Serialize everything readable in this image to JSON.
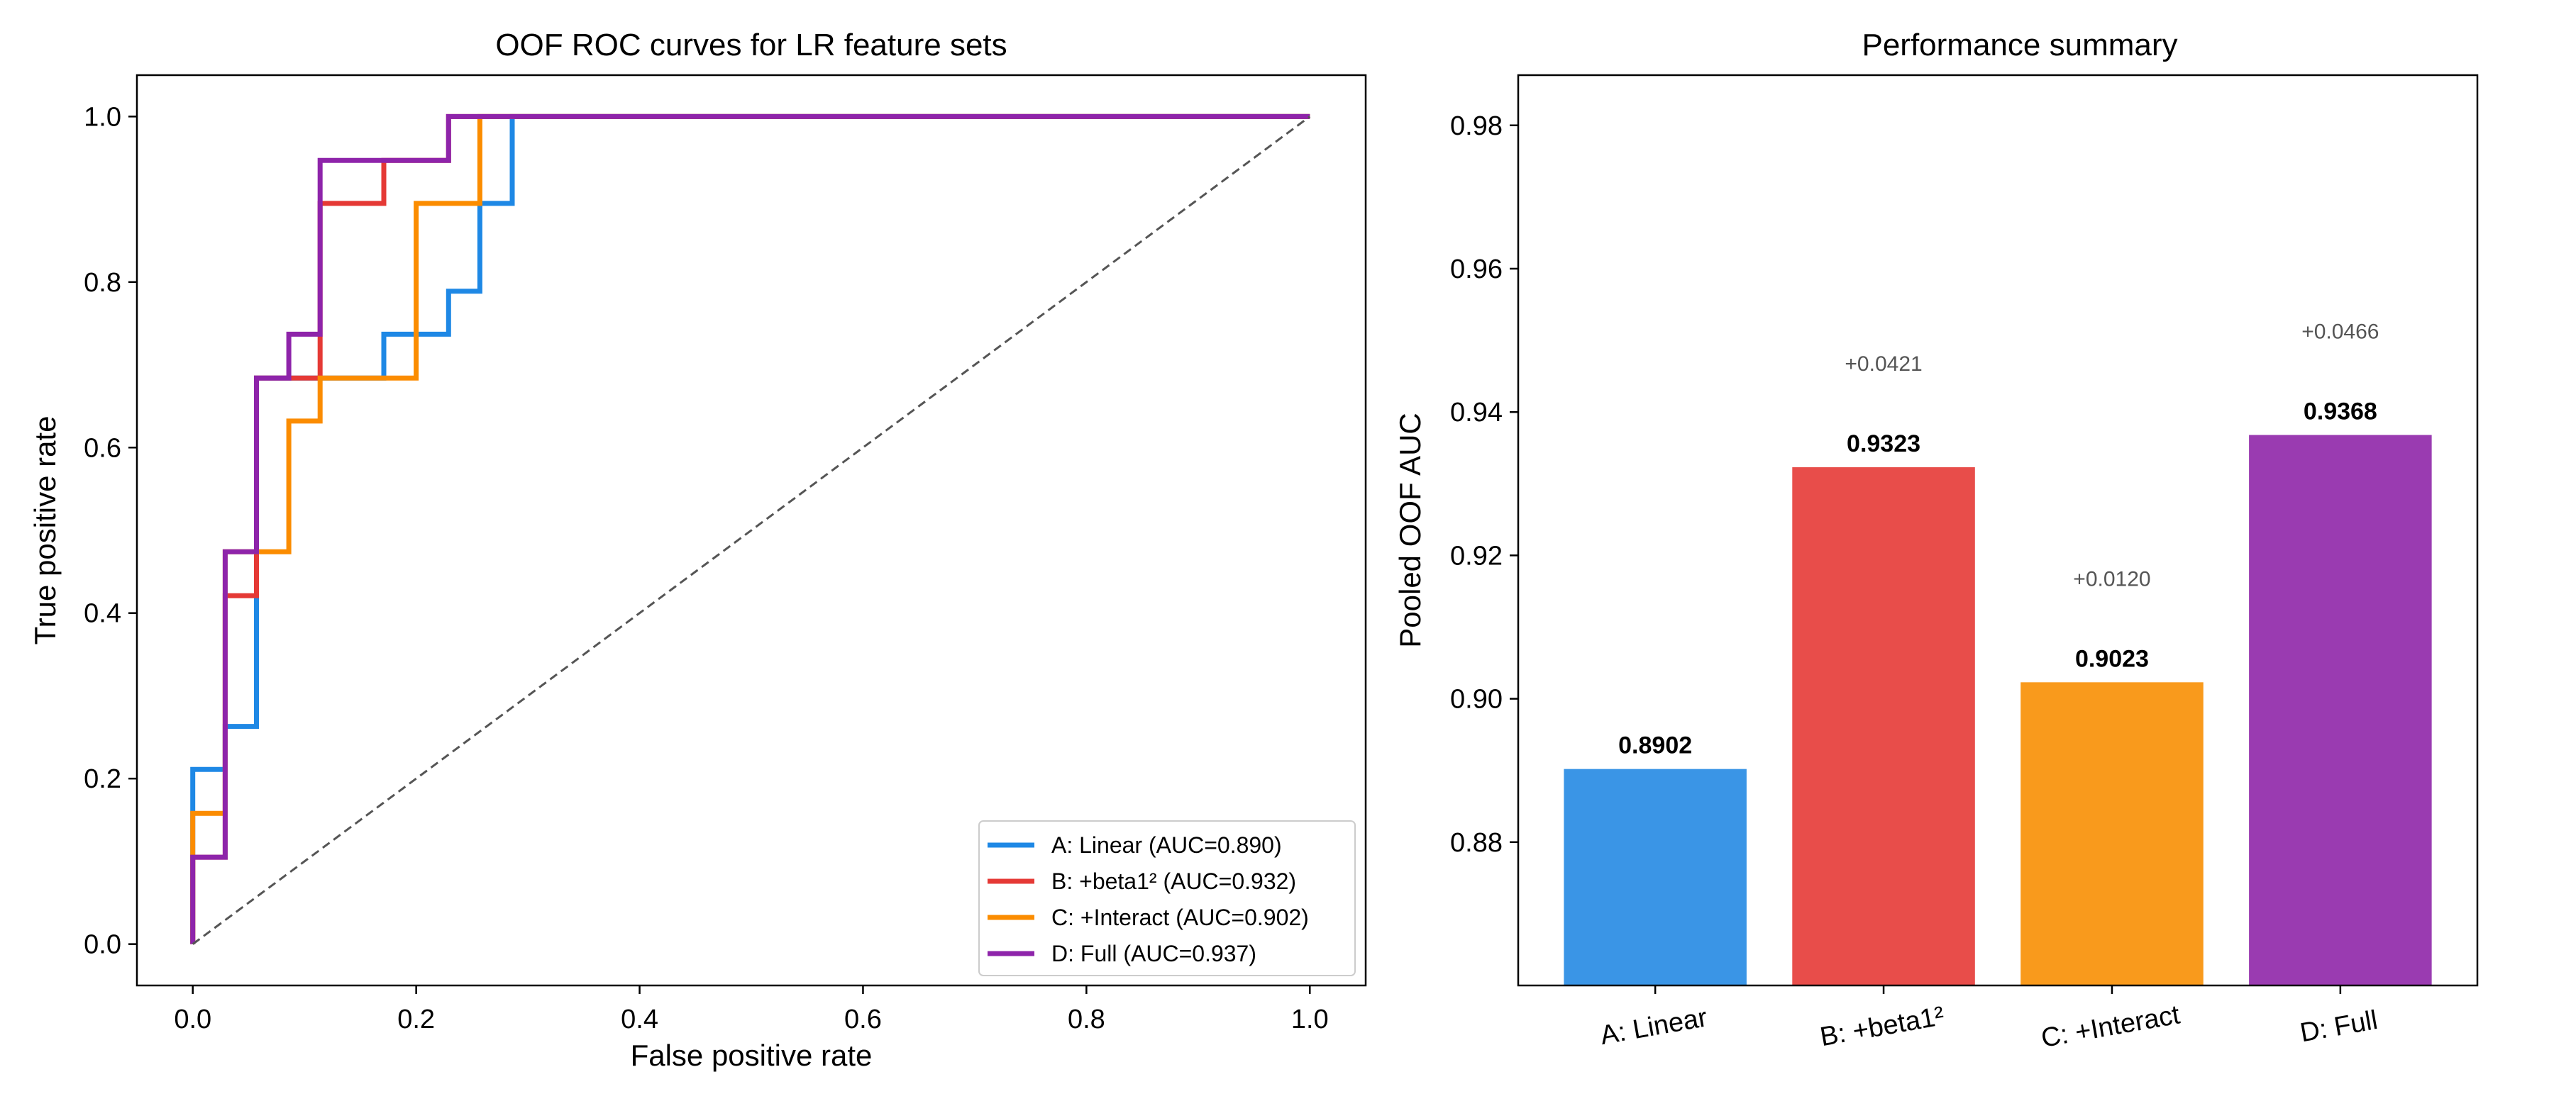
{
  "chart_data": [
    {
      "type": "line",
      "title": "OOF ROC curves for LR feature sets",
      "xlabel": "False positive rate",
      "ylabel": "True positive rate",
      "xlim": [
        -0.05,
        1.05
      ],
      "ylim": [
        -0.05,
        1.05
      ],
      "xticks": [
        0.0,
        0.2,
        0.4,
        0.6,
        0.8,
        1.0
      ],
      "xtick_labels": [
        "0.0",
        "0.2",
        "0.4",
        "0.6",
        "0.8",
        "1.0"
      ],
      "yticks": [
        0.0,
        0.2,
        0.4,
        0.6,
        0.8,
        1.0
      ],
      "ytick_labels": [
        "0.0",
        "0.2",
        "0.4",
        "0.6",
        "0.8",
        "1.0"
      ],
      "grid": false,
      "legend_position": "lower-right",
      "series": [
        {
          "name": "A: Linear (AUC=0.890)",
          "color": "#1e88e5",
          "x": [
            0,
            0,
            0.029,
            0.029,
            0.057,
            0.057,
            0.086,
            0.086,
            0.171,
            0.171,
            0.229,
            0.229,
            0.257,
            0.257,
            0.286,
            0.286,
            1.0
          ],
          "y": [
            0,
            0.211,
            0.211,
            0.263,
            0.263,
            0.684,
            0.684,
            0.684,
            0.684,
            0.737,
            0.737,
            0.789,
            0.789,
            0.895,
            0.895,
            1.0,
            1.0
          ]
        },
        {
          "name": "B: +beta1² (AUC=0.932)",
          "color": "#e53935",
          "x": [
            0,
            0,
            0.029,
            0.029,
            0.057,
            0.057,
            0.086,
            0.086,
            0.114,
            0.114,
            0.171,
            0.171,
            0.229,
            0.229,
            1.0
          ],
          "y": [
            0,
            0.105,
            0.105,
            0.421,
            0.421,
            0.684,
            0.684,
            0.684,
            0.684,
            0.895,
            0.895,
            0.947,
            0.947,
            1.0,
            1.0
          ]
        },
        {
          "name": "C: +Interact (AUC=0.902)",
          "color": "#fb8c00",
          "x": [
            0,
            0,
            0.029,
            0.029,
            0.086,
            0.086,
            0.114,
            0.114,
            0.2,
            0.2,
            0.257,
            0.257,
            1.0
          ],
          "y": [
            0,
            0.158,
            0.158,
            0.474,
            0.474,
            0.632,
            0.632,
            0.684,
            0.684,
            0.895,
            0.895,
            1.0,
            1.0
          ]
        },
        {
          "name": "D: Full (AUC=0.937)",
          "color": "#8e24aa",
          "x": [
            0,
            0,
            0.029,
            0.029,
            0.057,
            0.057,
            0.086,
            0.086,
            0.114,
            0.114,
            0.229,
            0.229,
            1.0
          ],
          "y": [
            0,
            0.105,
            0.105,
            0.474,
            0.474,
            0.684,
            0.684,
            0.737,
            0.737,
            0.947,
            0.947,
            1.0,
            1.0
          ]
        }
      ],
      "reference_line": {
        "x": [
          0,
          1
        ],
        "y": [
          0,
          1
        ],
        "color": "#555555",
        "style": "dashed"
      }
    },
    {
      "type": "bar",
      "title": "Performance summary",
      "xlabel": "",
      "ylabel": "Pooled OOF AUC",
      "categories": [
        "A: Linear",
        "B: +beta1²",
        "C: +Interact",
        "D: Full"
      ],
      "values": [
        0.8902,
        0.9323,
        0.9023,
        0.9368
      ],
      "value_labels": [
        "0.8902",
        "0.9323",
        "0.9023",
        "0.9368"
      ],
      "delta_labels": [
        "",
        "+0.0421",
        "+0.0120",
        "+0.0466"
      ],
      "colors": [
        "#3a95e6",
        "#e84d4a",
        "#f99a1c",
        "#9a3bb1"
      ],
      "ylim": [
        0.86,
        0.987
      ],
      "yticks": [
        0.88,
        0.9,
        0.92,
        0.94,
        0.96,
        0.98
      ],
      "ytick_labels": [
        "0.88",
        "0.90",
        "0.92",
        "0.94",
        "0.96",
        "0.98"
      ],
      "grid": false
    }
  ]
}
